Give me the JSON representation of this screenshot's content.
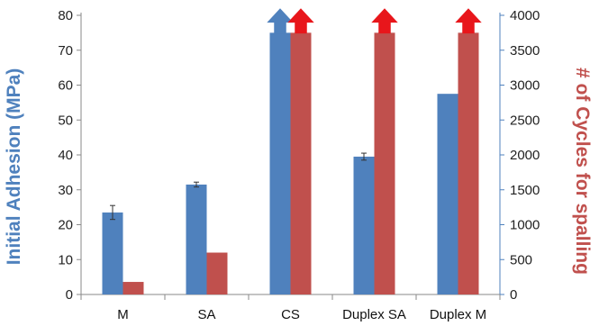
{
  "chart_data": {
    "type": "bar",
    "categories": [
      "M",
      "SA",
      "CS",
      "Duplex SA",
      "Duplex M"
    ],
    "y_left": {
      "label": "Initial Adhesion (MPa)",
      "lim": [
        0,
        80
      ],
      "ticks": [
        0,
        10,
        20,
        30,
        40,
        50,
        60,
        70,
        80
      ],
      "color": "#4f81bd"
    },
    "y_right": {
      "label": "# of Cycles for spalling",
      "lim": [
        0,
        4000
      ],
      "ticks": [
        0,
        500,
        1000,
        1500,
        2000,
        2500,
        3000,
        3500,
        4000
      ],
      "color": "#c0504d"
    },
    "series": [
      {
        "axis": "left",
        "color": "#4f81bd",
        "values": [
          23.5,
          31.5,
          75,
          39.5,
          57.5
        ],
        "errors": [
          2,
          0.7,
          null,
          1,
          null
        ],
        "arrow": [
          false,
          false,
          true,
          false,
          false
        ]
      },
      {
        "axis": "right",
        "color": "#c0504d",
        "values": [
          180,
          600,
          3750,
          3750,
          3750
        ],
        "errors": [
          null,
          null,
          null,
          null,
          null
        ],
        "arrow": [
          false,
          false,
          true,
          true,
          true
        ]
      }
    ],
    "arrow_colors": {
      "left": "#4f81bd",
      "right": "#e8161b"
    },
    "grid": false
  }
}
